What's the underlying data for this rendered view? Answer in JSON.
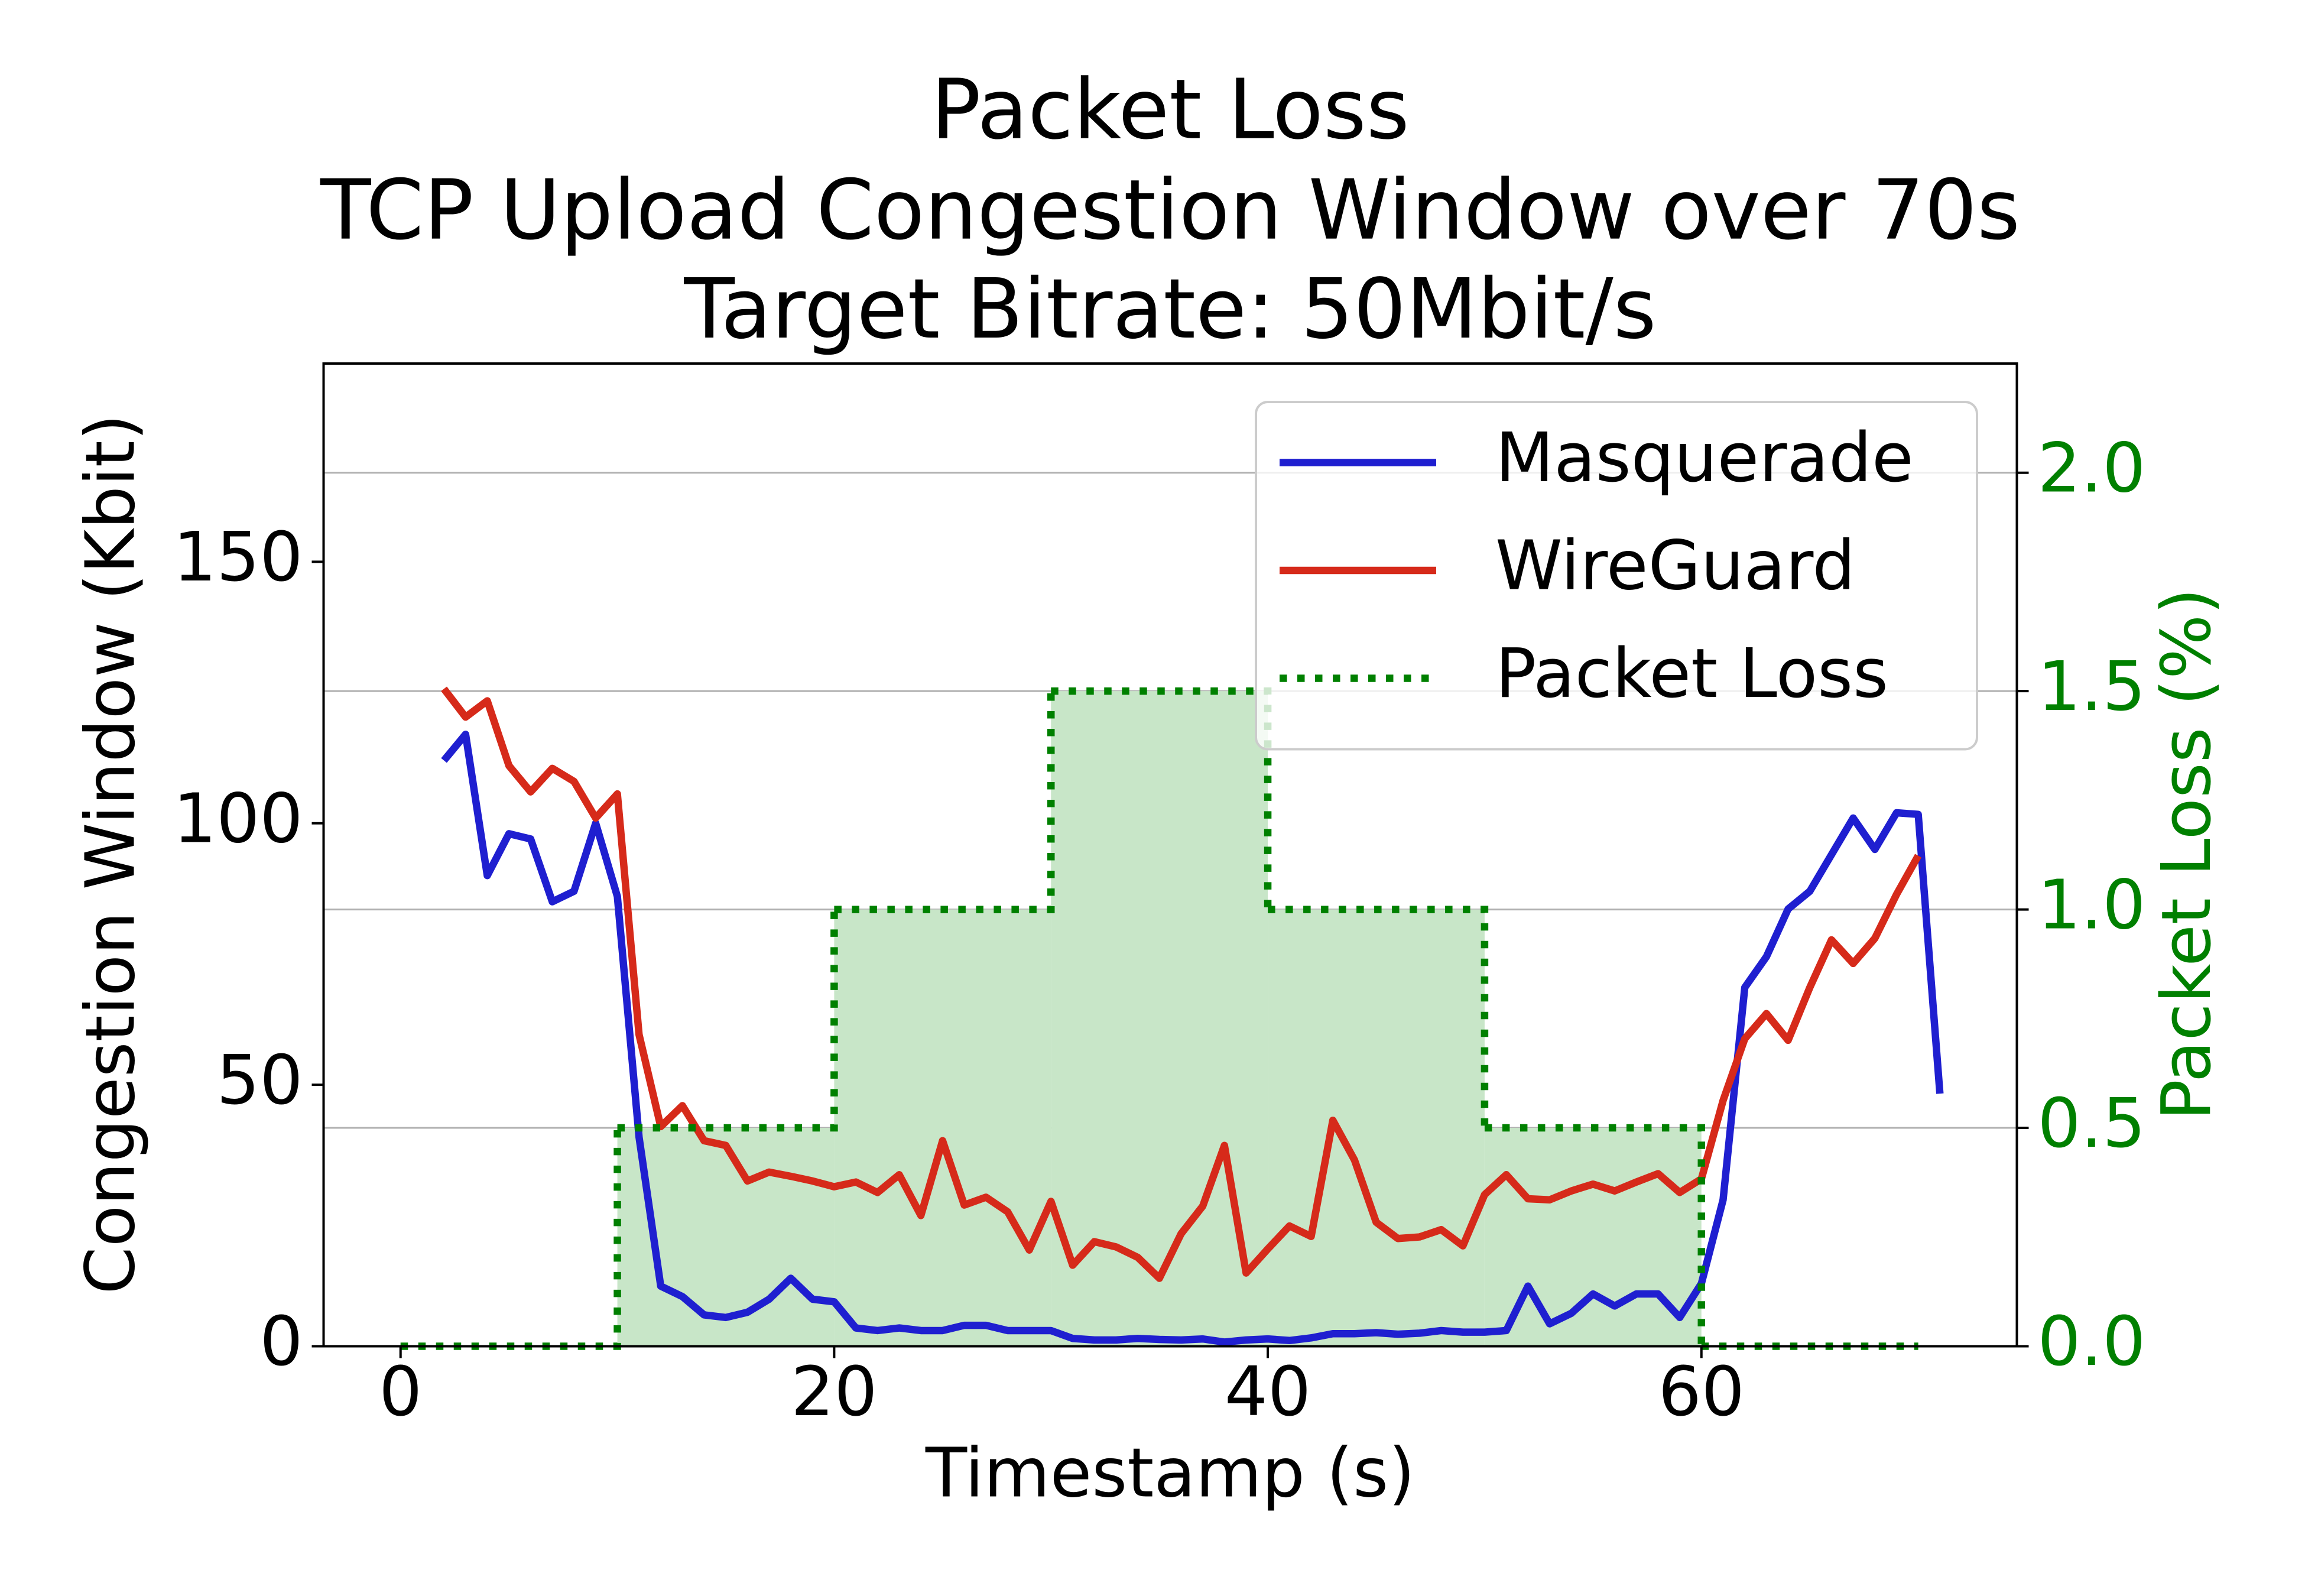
{
  "chart_data": {
    "type": "line",
    "title": [
      "Packet Loss",
      "TCP Upload Congestion Window over 70s",
      "Target Bitrate: 50Mbit/s"
    ],
    "xlabel": "Timestamp (s)",
    "ylabel": "Congestion Window (Kbit)",
    "y2label": "Packet Loss (%)",
    "y2label_color": "#008000",
    "xlim": [
      -3.55,
      74.55
    ],
    "xticks": [
      0,
      20,
      40,
      60
    ],
    "ylim": [
      0,
      187.9
    ],
    "yticks": [
      0,
      50,
      100,
      150
    ],
    "y2lim": [
      0,
      2.25
    ],
    "y2ticks": [
      {
        "value": 0,
        "label": "0.0"
      },
      0.5,
      {
        "value": 1,
        "label": "1.0"
      },
      1.5,
      {
        "value": 2,
        "label": "2.0"
      }
    ],
    "grid": "y2",
    "legend": "upper right",
    "x": [
      2,
      3,
      4,
      5,
      6,
      7,
      8,
      9,
      10,
      11,
      12,
      13,
      14,
      15,
      16,
      17,
      18,
      19,
      20,
      21,
      22,
      23,
      24,
      25,
      26,
      27,
      28,
      29,
      30,
      31,
      32,
      33,
      34,
      35,
      36,
      37,
      38,
      39,
      40,
      41,
      42,
      43,
      44,
      45,
      46,
      47,
      48,
      49,
      50,
      51,
      52,
      53,
      54,
      55,
      56,
      57,
      58,
      59,
      60,
      61,
      62,
      63,
      64,
      65,
      66,
      67,
      68,
      69,
      70,
      71
    ],
    "series": [
      {
        "name": "Masquerade",
        "color": "#1f1fd0",
        "values": [
          112,
          117,
          90,
          98,
          97,
          85,
          87,
          100,
          86,
          40,
          11.5,
          9.5,
          6,
          5.5,
          6.5,
          9,
          13,
          9,
          8.5,
          3.5,
          3,
          3.5,
          3,
          3,
          4,
          4,
          3,
          3,
          3,
          1.5,
          1.2,
          1.2,
          1.5,
          1.3,
          1.2,
          1.4,
          0.8,
          1.2,
          1.4,
          1.1,
          1.6,
          2.4,
          2.4,
          2.6,
          2.3,
          2.5,
          3,
          2.7,
          2.7,
          3,
          11.5,
          4.3,
          6.3,
          10,
          7.7,
          10,
          10,
          5.5,
          12,
          28,
          68.6,
          74.5,
          83.6,
          87,
          94,
          101,
          95,
          102,
          101.7,
          48.3
        ]
      },
      {
        "name": "WireGuard",
        "color": "#d62a1a",
        "values": [
          125.7,
          120.3,
          123.4,
          111,
          106,
          110.5,
          108,
          101,
          105.6,
          59.6,
          42,
          46,
          39.3,
          38.4,
          31.6,
          33.3,
          32.5,
          31.6,
          30.5,
          31.4,
          29.4,
          32.8,
          25,
          39.3,
          27,
          28.5,
          25.7,
          18.4,
          27.7,
          15.5,
          20,
          19,
          17,
          13,
          21.5,
          26.8,
          38.4,
          14,
          18.6,
          23,
          21,
          43.2,
          35.6,
          23.7,
          20.6,
          20.9,
          22.3,
          19.2,
          29,
          32.8,
          28.2,
          28,
          29.7,
          31,
          29.7,
          31.4,
          33,
          29.4,
          32,
          47,
          58.8,
          63.6,
          58.5,
          68.6,
          77.7,
          73.2,
          78,
          86.4,
          93.8,
          null
        ]
      },
      {
        "name": "Packet Loss",
        "color": "#008000",
        "fill": "#c8e6c8",
        "axis": "y2",
        "step": "post",
        "x": [
          0,
          10,
          20,
          30,
          40,
          50,
          60,
          70
        ],
        "values": [
          0,
          0.5,
          1,
          1.5,
          1,
          0.5,
          0,
          0
        ]
      }
    ]
  }
}
